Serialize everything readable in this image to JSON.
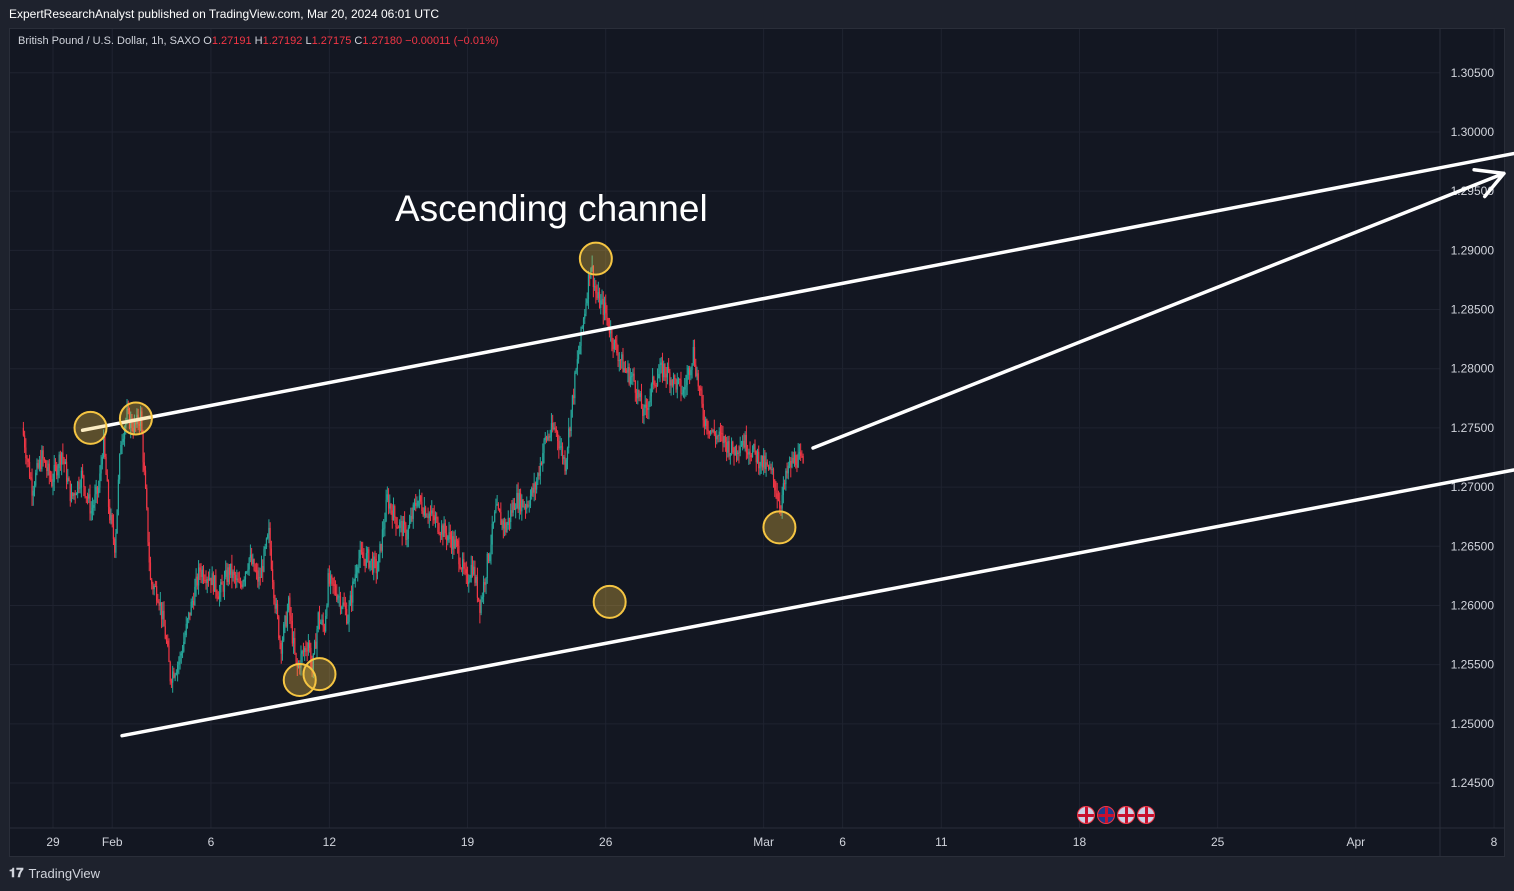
{
  "header": {
    "publisher_line": "ExpertResearchAnalyst published on TradingView.com, Mar 20, 2024 06:01 UTC"
  },
  "legend": {
    "symbol": "British Pound / U.S. Dollar, 1h, SAXO",
    "open_label": "O",
    "open": "1.27191",
    "high_label": "H",
    "high": "1.27192",
    "low_label": "L",
    "low": "1.27175",
    "close_label": "C",
    "close": "1.27180",
    "change": "−0.00011 (−0.01%)"
  },
  "annotation": {
    "text": "Ascending channel"
  },
  "footer": {
    "brand": "TradingView"
  },
  "colors": {
    "up": "#26a69a",
    "down": "#f23645",
    "background": "#131722",
    "grid": "#1f2330",
    "line": "#ffffff",
    "marker": "#f5c542"
  },
  "chart_data": {
    "type": "candlestick",
    "symbol": "GBPUSD",
    "interval": "1h",
    "ylim": [
      1.2412,
      1.3087
    ],
    "y_ticks": [
      "1.30500",
      "1.30000",
      "1.29500",
      "1.29000",
      "1.28500",
      "1.28000",
      "1.27500",
      "1.27000",
      "1.26500",
      "1.26000",
      "1.25500",
      "1.25000",
      "1.24500"
    ],
    "x_ticks": [
      {
        "label": "29",
        "x": 0.0
      },
      {
        "label": "Feb",
        "x": 3.0
      },
      {
        "label": "6",
        "x": 8.0
      },
      {
        "label": "12",
        "x": 14.0
      },
      {
        "label": "19",
        "x": 21.0
      },
      {
        "label": "26",
        "x": 28.0
      },
      {
        "label": "Mar",
        "x": 36.0
      },
      {
        "label": "6",
        "x": 40.0
      },
      {
        "label": "11",
        "x": 45.0
      },
      {
        "label": "18",
        "x": 52.0
      },
      {
        "label": "25",
        "x": 59.0
      },
      {
        "label": "Apr",
        "x": 66.0
      },
      {
        "label": "8",
        "x": 73.0
      }
    ],
    "x_unit": "trading days from Jan 29, 2024",
    "price_path": [
      [
        -1.5,
        1.275
      ],
      [
        -1.0,
        1.27
      ],
      [
        -0.5,
        1.2725
      ],
      [
        0.0,
        1.2705
      ],
      [
        0.5,
        1.273
      ],
      [
        1.0,
        1.269
      ],
      [
        1.5,
        1.271
      ],
      [
        2.0,
        1.268
      ],
      [
        2.4,
        1.27
      ],
      [
        2.6,
        1.274
      ],
      [
        2.9,
        1.268
      ],
      [
        3.2,
        1.265
      ],
      [
        3.5,
        1.274
      ],
      [
        3.8,
        1.276
      ],
      [
        4.2,
        1.275
      ],
      [
        4.5,
        1.276
      ],
      [
        4.8,
        1.268
      ],
      [
        5.0,
        1.262
      ],
      [
        5.4,
        1.261
      ],
      [
        5.8,
        1.257
      ],
      [
        6.0,
        1.254
      ],
      [
        6.5,
        1.2555
      ],
      [
        7.0,
        1.2595
      ],
      [
        7.5,
        1.263
      ],
      [
        8.0,
        1.2625
      ],
      [
        8.5,
        1.261
      ],
      [
        9.0,
        1.263
      ],
      [
        9.5,
        1.2615
      ],
      [
        10.0,
        1.264
      ],
      [
        10.5,
        1.262
      ],
      [
        11.0,
        1.266
      ],
      [
        11.3,
        1.2605
      ],
      [
        11.6,
        1.2565
      ],
      [
        12.0,
        1.26
      ],
      [
        12.4,
        1.2545
      ],
      [
        12.6,
        1.2555
      ],
      [
        13.0,
        1.257
      ],
      [
        13.2,
        1.2545
      ],
      [
        13.5,
        1.259
      ],
      [
        13.8,
        1.258
      ],
      [
        14.0,
        1.262
      ],
      [
        14.5,
        1.261
      ],
      [
        15.0,
        1.259
      ],
      [
        15.5,
        1.264
      ],
      [
        16.0,
        1.264
      ],
      [
        16.5,
        1.263
      ],
      [
        17.0,
        1.269
      ],
      [
        17.5,
        1.267
      ],
      [
        18.0,
        1.266
      ],
      [
        18.5,
        1.269
      ],
      [
        19.0,
        1.268
      ],
      [
        19.5,
        1.267
      ],
      [
        20.0,
        1.266
      ],
      [
        20.5,
        1.265
      ],
      [
        21.0,
        1.262
      ],
      [
        21.3,
        1.2635
      ],
      [
        21.7,
        1.26
      ],
      [
        22.0,
        1.263
      ],
      [
        22.5,
        1.268
      ],
      [
        23.0,
        1.2665
      ],
      [
        23.5,
        1.269
      ],
      [
        24.0,
        1.2685
      ],
      [
        24.5,
        1.27
      ],
      [
        25.0,
        1.274
      ],
      [
        25.5,
        1.275
      ],
      [
        26.0,
        1.272
      ],
      [
        26.5,
        1.279
      ],
      [
        27.0,
        1.285
      ],
      [
        27.3,
        1.289
      ],
      [
        27.6,
        1.286
      ],
      [
        28.0,
        1.285
      ],
      [
        28.5,
        1.282
      ],
      [
        29.0,
        1.28
      ],
      [
        29.5,
        1.279
      ],
      [
        30.0,
        1.276
      ],
      [
        30.5,
        1.279
      ],
      [
        31.0,
        1.28
      ],
      [
        31.5,
        1.279
      ],
      [
        32.0,
        1.278
      ],
      [
        32.5,
        1.2815
      ],
      [
        33.0,
        1.276
      ],
      [
        33.5,
        1.2745
      ],
      [
        34.0,
        1.274
      ],
      [
        34.5,
        1.273
      ],
      [
        35.0,
        1.274
      ],
      [
        35.5,
        1.273
      ],
      [
        36.0,
        1.272
      ],
      [
        36.5,
        1.271
      ],
      [
        36.9,
        1.2685
      ],
      [
        37.3,
        1.2715
      ],
      [
        37.7,
        1.2725
      ],
      [
        38.0,
        1.272
      ]
    ],
    "channel_upper": {
      "from": [
        1.5,
        1.2748
      ],
      "to": [
        75.0,
        1.2985
      ]
    },
    "channel_lower": {
      "from": [
        3.5,
        1.249
      ],
      "to": [
        77.0,
        1.2724
      ]
    },
    "forecast_arrow": {
      "from": [
        38.5,
        1.2733
      ],
      "to": [
        73.5,
        1.2965
      ]
    },
    "touch_points": [
      {
        "x": 1.9,
        "y": 1.275
      },
      {
        "x": 4.2,
        "y": 1.2758
      },
      {
        "x": 12.5,
        "y": 1.2537
      },
      {
        "x": 13.5,
        "y": 1.2542
      },
      {
        "x": 28.2,
        "y": 1.2603
      },
      {
        "x": 27.5,
        "y": 1.2893
      },
      {
        "x": 36.8,
        "y": 1.2666
      }
    ]
  }
}
